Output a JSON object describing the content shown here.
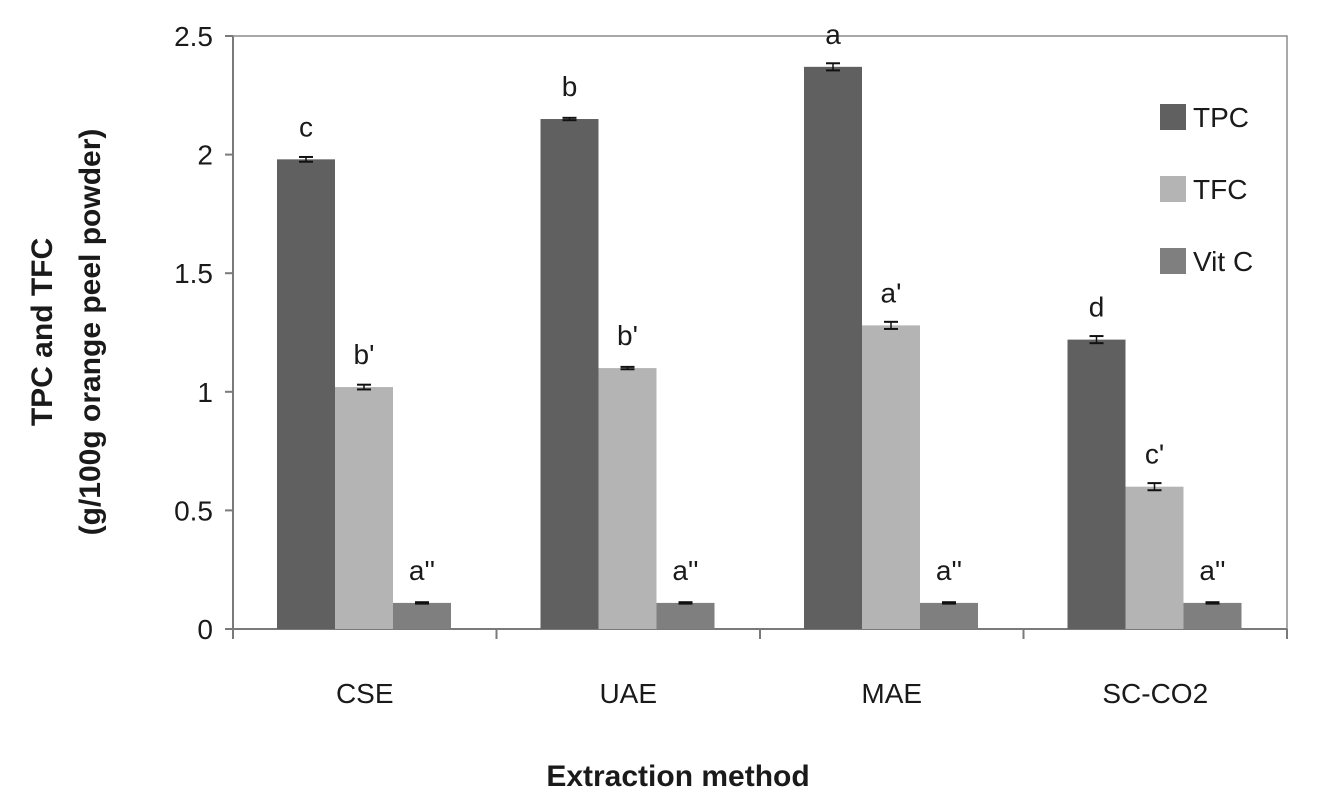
{
  "chart_data": {
    "type": "bar",
    "title": "",
    "xlabel": "Extraction method",
    "ylabel_line1": "TPC and TFC",
    "ylabel_line2": "(g/100g orange peel powder)",
    "ylim": [
      0,
      2.5
    ],
    "yticks": [
      "0",
      "0.5",
      "1",
      "1.5",
      "2",
      "2.5"
    ],
    "ytick_values": [
      0,
      0.5,
      1,
      1.5,
      2,
      2.5
    ],
    "categories": [
      "CSE",
      "UAE",
      "MAE",
      "SC-CO2"
    ],
    "grid": false,
    "legend_position": "top-right",
    "series": [
      {
        "name": "TPC",
        "color": "#606060",
        "values": [
          1.98,
          2.15,
          2.37,
          1.22
        ],
        "errors": [
          0.01,
          0.005,
          0.015,
          0.015
        ],
        "letters": [
          "c",
          "b",
          "a",
          "d"
        ]
      },
      {
        "name": "TFC",
        "color": "#b4b4b4",
        "values": [
          1.02,
          1.1,
          1.28,
          0.6
        ],
        "errors": [
          0.01,
          0.005,
          0.015,
          0.015
        ],
        "letters": [
          "b'",
          "b'",
          "a'",
          "c'"
        ]
      },
      {
        "name": "Vit C",
        "color": "#7f7f7f",
        "values": [
          0.11,
          0.11,
          0.11,
          0.11
        ],
        "errors": [
          0.003,
          0.003,
          0.003,
          0.003
        ],
        "letters": [
          "a''",
          "a''",
          "a''",
          "a''"
        ]
      }
    ]
  }
}
